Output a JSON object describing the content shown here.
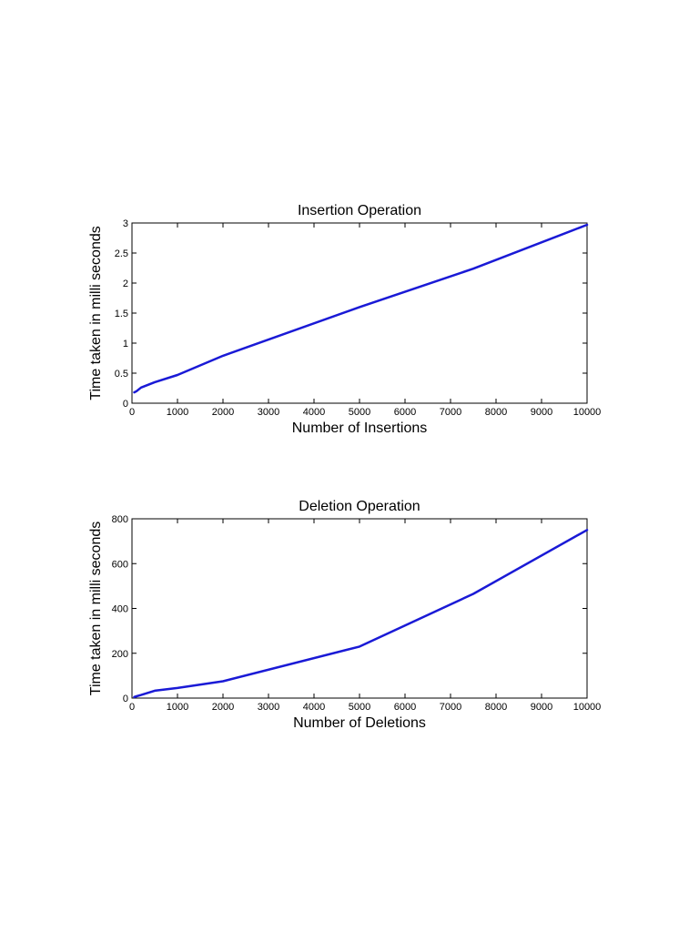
{
  "chart_data": [
    {
      "type": "line",
      "title": "Insertion Operation",
      "xlabel": "Number of Insertions",
      "ylabel": "Time taken in milli seconds",
      "xlim": [
        0,
        10000
      ],
      "ylim": [
        0,
        3
      ],
      "xticks": [
        0,
        1000,
        2000,
        3000,
        4000,
        5000,
        6000,
        7000,
        8000,
        9000,
        10000
      ],
      "yticks": [
        0,
        0.5,
        1,
        1.5,
        2,
        2.5,
        3
      ],
      "grid": false,
      "series": [
        {
          "color": "#1a1ad6",
          "x": [
            50,
            100,
            200,
            500,
            1000,
            2000,
            5000,
            7500,
            10000
          ],
          "y": [
            0.18,
            0.2,
            0.26,
            0.35,
            0.47,
            0.79,
            1.6,
            2.24,
            2.97
          ]
        }
      ]
    },
    {
      "type": "line",
      "title": "Deletion Operation",
      "xlabel": "Number of Deletions",
      "ylabel": "Time taken in milli seconds",
      "xlim": [
        0,
        10000
      ],
      "ylim": [
        0,
        800
      ],
      "xticks": [
        0,
        1000,
        2000,
        3000,
        4000,
        5000,
        6000,
        7000,
        8000,
        9000,
        10000
      ],
      "yticks": [
        0,
        200,
        400,
        600,
        800
      ],
      "grid": false,
      "series": [
        {
          "color": "#1a1ad6",
          "x": [
            50,
            100,
            200,
            500,
            1000,
            2000,
            5000,
            7500,
            10000
          ],
          "y": [
            5,
            8,
            14,
            33,
            45,
            75,
            230,
            465,
            750
          ]
        }
      ]
    }
  ]
}
